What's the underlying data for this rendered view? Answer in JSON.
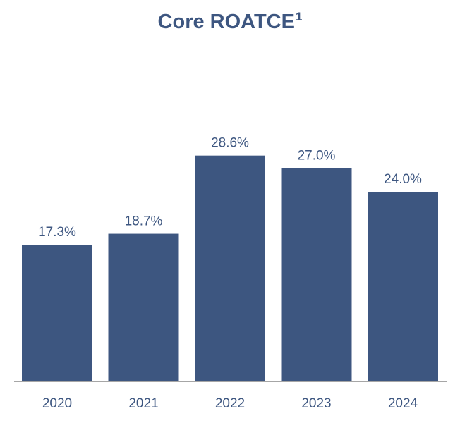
{
  "title": "Core ROATCE",
  "title_superscript": "1",
  "chart_data": {
    "type": "bar",
    "title": "Core ROATCE¹",
    "categories": [
      "2020",
      "2021",
      "2022",
      "2023",
      "2024"
    ],
    "values": [
      17.3,
      18.7,
      28.6,
      27.0,
      24.0
    ],
    "value_labels": [
      "17.3%",
      "18.7%",
      "28.6%",
      "27.0%",
      "24.0%"
    ],
    "xlabel": "",
    "ylabel": "",
    "ylim": [
      0,
      40
    ],
    "grid": false,
    "legend": "none",
    "bar_color": "#3d5680",
    "axis_color": "#a6a6a6"
  }
}
